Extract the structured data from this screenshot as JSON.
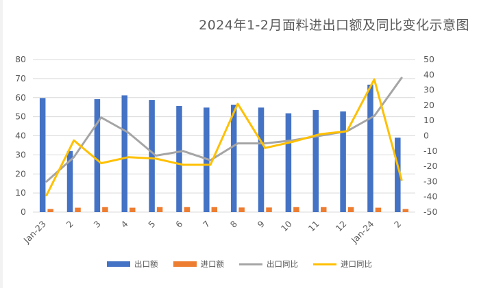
{
  "chart_data": {
    "type": "bar",
    "title": "2024年1-2月面料进出口额及同比变化示意图",
    "categories": [
      "Jan-23",
      "2",
      "3",
      "4",
      "5",
      "6",
      "7",
      "8",
      "9",
      "10",
      "11",
      "12",
      "Jan-24",
      "2"
    ],
    "yleft": {
      "ylim": [
        0,
        80
      ],
      "ticks": [
        0,
        10,
        20,
        30,
        40,
        50,
        60,
        70,
        80
      ]
    },
    "yright": {
      "ylim": [
        -50,
        50
      ],
      "ticks": [
        -50,
        -40,
        -30,
        -20,
        -10,
        0,
        10,
        20,
        30,
        40,
        50
      ]
    },
    "grid": true,
    "legend_position": "bottom",
    "series": [
      {
        "name": "出口额",
        "kind": "bar",
        "axis": "left",
        "color": "#4472C4",
        "values": [
          59.8,
          32.0,
          59.2,
          61.2,
          58.8,
          55.6,
          54.8,
          56.3,
          54.8,
          51.8,
          53.5,
          52.8,
          66.8,
          39.0
        ]
      },
      {
        "name": "进口额",
        "kind": "bar",
        "axis": "left",
        "color": "#ED7D31",
        "values": [
          1.6,
          2.3,
          2.6,
          2.3,
          2.6,
          2.6,
          2.6,
          2.4,
          2.4,
          2.6,
          2.6,
          2.6,
          2.3,
          1.6
        ]
      },
      {
        "name": "出口同比",
        "kind": "line",
        "axis": "right",
        "color": "#A5A5A5",
        "values": [
          -30,
          -14,
          12,
          2,
          -13,
          -10,
          -16,
          -5,
          -5,
          -3,
          0,
          3,
          13,
          38
        ]
      },
      {
        "name": "进口同比",
        "kind": "line",
        "axis": "right",
        "color": "#FFC000",
        "values": [
          -39,
          -3,
          -18,
          -14,
          -15,
          -19,
          -19,
          21,
          -8,
          -4,
          1,
          3,
          37,
          -29
        ]
      }
    ]
  }
}
